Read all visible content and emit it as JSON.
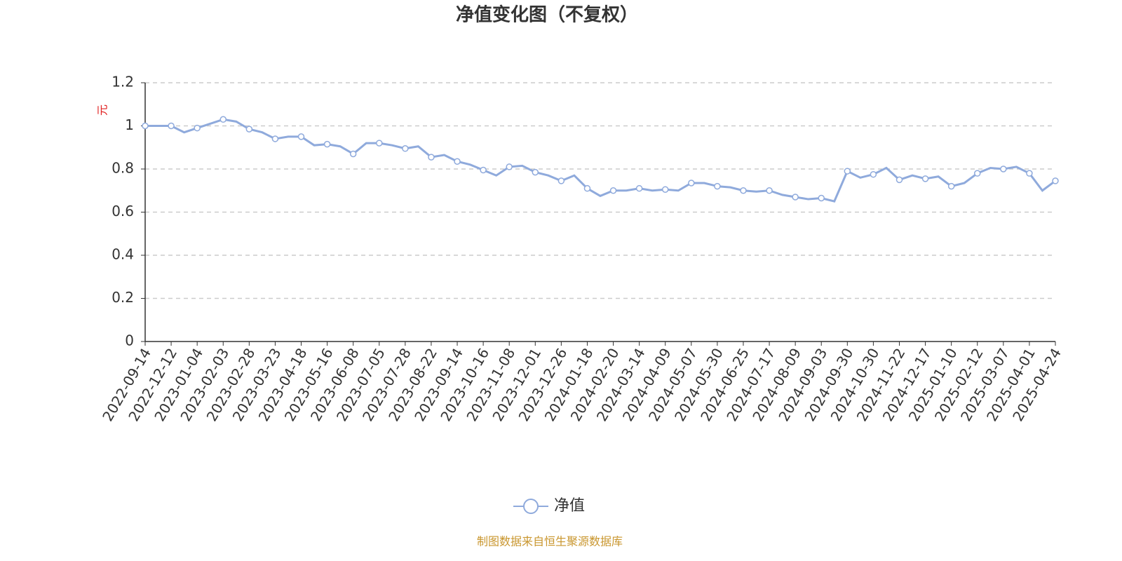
{
  "chart_data": {
    "type": "line",
    "title": "净值变化图（不复权）",
    "y_label": "元",
    "categories": [
      "2022-09-14",
      null,
      "2022-12-12",
      null,
      "2023-01-04",
      null,
      "2023-02-03",
      null,
      "2023-02-28",
      null,
      "2023-03-23",
      null,
      "2023-04-18",
      null,
      "2023-05-16",
      null,
      "2023-06-08",
      null,
      "2023-07-05",
      null,
      "2023-07-28",
      null,
      "2023-08-22",
      null,
      "2023-09-14",
      null,
      "2023-10-16",
      null,
      "2023-11-08",
      null,
      "2023-12-01",
      null,
      "2023-12-26",
      null,
      "2024-01-18",
      null,
      "2024-02-20",
      null,
      "2024-03-14",
      null,
      "2024-04-09",
      null,
      "2024-05-07",
      null,
      "2024-05-30",
      null,
      "2024-06-25",
      null,
      "2024-07-17",
      null,
      "2024-08-09",
      null,
      "2024-09-03",
      null,
      "2024-09-30",
      null,
      "2024-10-30",
      null,
      "2024-11-22",
      null,
      "2024-12-17",
      null,
      "2025-01-10",
      null,
      "2025-02-12",
      null,
      "2025-03-07",
      null,
      "2025-04-01",
      null,
      "2025-04-24"
    ],
    "series": [
      {
        "name": "净值",
        "color": "#8faadc",
        "values": [
          1.0,
          1.0,
          1.0,
          0.97,
          0.99,
          1.01,
          1.03,
          1.02,
          0.985,
          0.97,
          0.94,
          0.95,
          0.95,
          0.91,
          0.915,
          0.905,
          0.87,
          0.92,
          0.92,
          0.91,
          0.895,
          0.905,
          0.855,
          0.865,
          0.835,
          0.82,
          0.795,
          0.77,
          0.81,
          0.815,
          0.785,
          0.77,
          0.745,
          0.77,
          0.71,
          0.675,
          0.7,
          0.7,
          0.71,
          0.7,
          0.705,
          0.7,
          0.735,
          0.735,
          0.72,
          0.715,
          0.7,
          0.695,
          0.7,
          0.68,
          0.67,
          0.66,
          0.665,
          0.65,
          0.79,
          0.76,
          0.775,
          0.805,
          0.75,
          0.77,
          0.755,
          0.765,
          0.72,
          0.735,
          0.78,
          0.805,
          0.8,
          0.81,
          0.78,
          0.7,
          0.745
        ]
      }
    ],
    "ylim": [
      0,
      1.2
    ],
    "yticks": [
      0,
      0.2,
      0.4,
      0.6,
      0.8,
      1,
      1.2
    ],
    "grid": true
  },
  "source": "制图数据来自恒生聚源数据库"
}
